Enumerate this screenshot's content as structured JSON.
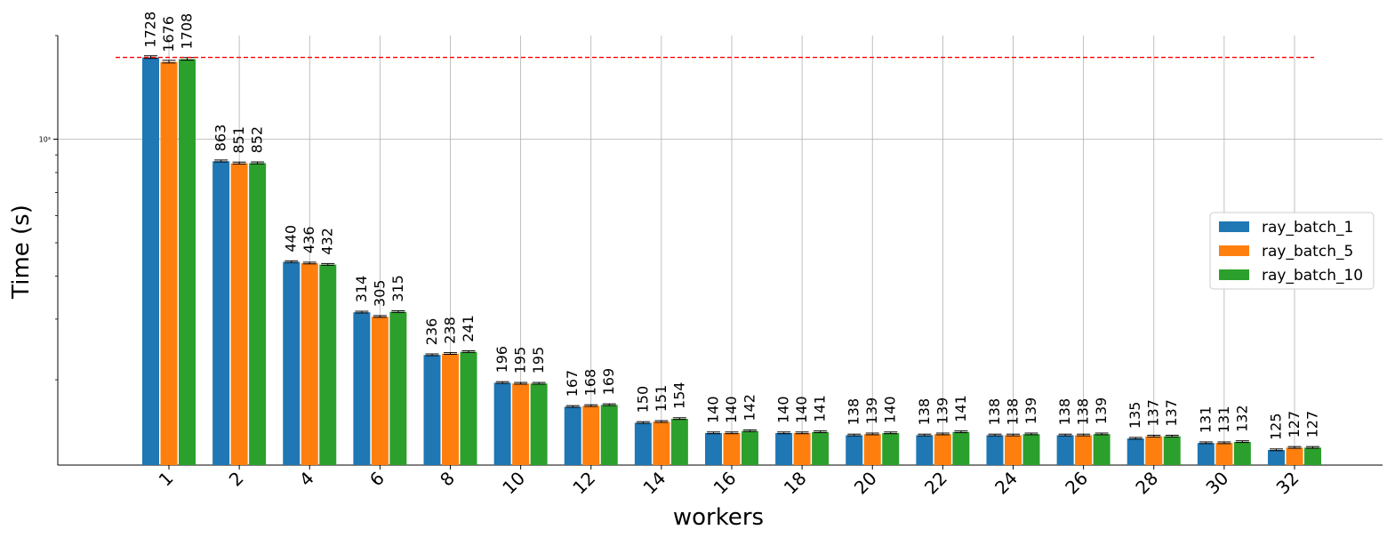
{
  "chart_data": {
    "type": "bar",
    "xlabel": "workers",
    "ylabel": "Time (s)",
    "yscale": "log",
    "ylim": [
      113,
      2000
    ],
    "yticks": [
      {
        "value": 1000,
        "label": "10³"
      }
    ],
    "grid": true,
    "legend_position": "right",
    "categories": [
      "1",
      "2",
      "4",
      "6",
      "8",
      "10",
      "12",
      "14",
      "16",
      "18",
      "20",
      "22",
      "24",
      "26",
      "28",
      "30",
      "32"
    ],
    "series": [
      {
        "name": "ray_batch_1",
        "color": "#1f77b4",
        "values": [
          1728,
          863,
          440,
          314,
          236,
          196,
          167,
          150,
          140,
          140,
          138,
          138,
          138,
          138,
          135,
          131,
          125
        ]
      },
      {
        "name": "ray_batch_5",
        "color": "#ff7f0e",
        "values": [
          1676,
          851,
          436,
          305,
          238,
          195,
          168,
          151,
          140,
          140,
          139,
          139,
          138,
          138,
          137,
          131,
          127
        ]
      },
      {
        "name": "ray_batch_10",
        "color": "#2ca02c",
        "values": [
          1708,
          852,
          432,
          315,
          241,
          195,
          169,
          154,
          142,
          141,
          140,
          141,
          139,
          139,
          137,
          132,
          127
        ]
      }
    ],
    "reference_line": {
      "value": 1728,
      "color": "#ff0000",
      "style": "dashed"
    }
  }
}
